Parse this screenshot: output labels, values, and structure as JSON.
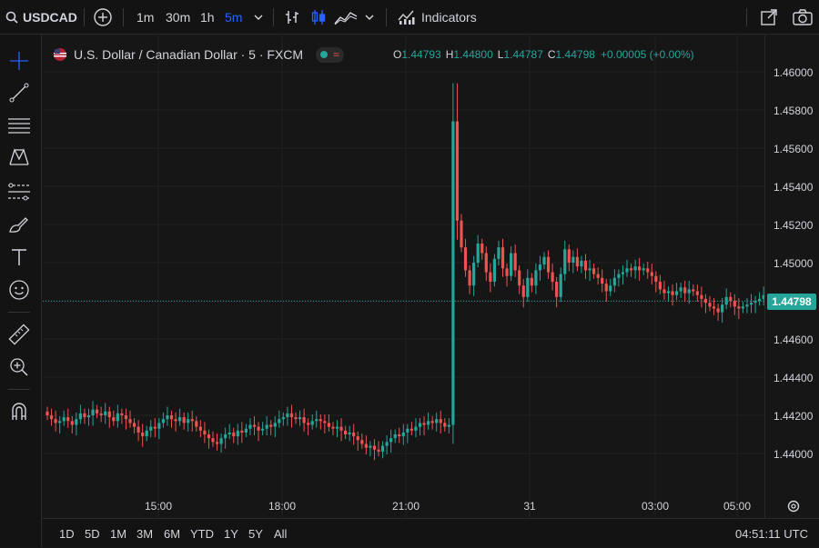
{
  "toolbar": {
    "symbol": "USDCAD",
    "intervals": [
      "1m",
      "30m",
      "1h",
      "5m"
    ],
    "active_interval": "5m",
    "indicators_label": "Indicators"
  },
  "legend": {
    "title": "U.S. Dollar / Canadian Dollar · 5 · FXCM",
    "open_label": "O",
    "open": "1.44793",
    "high_label": "H",
    "high": "1.44800",
    "low_label": "L",
    "low": "1.44787",
    "close_label": "C",
    "close": "1.44798",
    "change": "+0.00005 (+0.00%)"
  },
  "price_axis": {
    "ticks": [
      "1.46000",
      "1.45800",
      "1.45600",
      "1.45400",
      "1.45200",
      "1.45000",
      "1.44600",
      "1.44400",
      "1.44200",
      "1.44000"
    ],
    "current_price": "1.44798"
  },
  "time_axis": {
    "ticks": [
      "15:00",
      "18:00",
      "21:00",
      "31",
      "03:00",
      "05:00"
    ]
  },
  "bottom": {
    "ranges": [
      "1D",
      "5D",
      "1M",
      "3M",
      "6M",
      "YTD",
      "1Y",
      "5Y",
      "All"
    ],
    "clock": "04:51:11 UTC"
  },
  "colors": {
    "up": "#26a69a",
    "down": "#ef5350",
    "accent": "#2962ff",
    "background": "#161616"
  },
  "chart_data": {
    "type": "candlestick",
    "title": "U.S. Dollar / Canadian Dollar · 5 · FXCM",
    "ylim": [
      1.4392,
      1.4612
    ],
    "series": [
      {
        "values": [
          1.442,
          1.4418,
          1.4416,
          1.4417,
          1.4419,
          1.4417,
          1.4415,
          1.4418,
          1.4421,
          1.4419,
          1.442,
          1.4423,
          1.4421,
          1.442,
          1.4422,
          1.4419,
          1.4417,
          1.4421,
          1.442,
          1.4418,
          1.4416,
          1.4414,
          1.4411,
          1.4409,
          1.4412,
          1.4414,
          1.4413,
          1.4416,
          1.4418,
          1.442,
          1.4418,
          1.4417,
          1.4419,
          1.4416,
          1.4418,
          1.4417,
          1.4414,
          1.4412,
          1.441,
          1.4408,
          1.4406,
          1.4405,
          1.4408,
          1.441,
          1.4411,
          1.4409,
          1.4412,
          1.4411,
          1.4413,
          1.4415,
          1.4414,
          1.4412,
          1.4413,
          1.4415,
          1.4414,
          1.4416,
          1.4418,
          1.4419,
          1.4421,
          1.4419,
          1.4418,
          1.4419,
          1.4416,
          1.4415,
          1.4417,
          1.4418,
          1.4417,
          1.4416,
          1.4414,
          1.4413,
          1.4414,
          1.4412,
          1.441,
          1.4411,
          1.4409,
          1.4407,
          1.4405,
          1.4403,
          1.4404,
          1.4402,
          1.4401,
          1.4404,
          1.4406,
          1.4408,
          1.441,
          1.4409,
          1.4411,
          1.4413,
          1.4412,
          1.4414,
          1.4416,
          1.4415,
          1.4417,
          1.4416,
          1.4418,
          1.4416,
          1.4414,
          1.4415,
          1.4574,
          1.4522,
          1.4508,
          1.4496,
          1.4488,
          1.45,
          1.451,
          1.4505,
          1.4495,
          1.449,
          1.4502,
          1.4508,
          1.4497,
          1.4493,
          1.4505,
          1.4496,
          1.4488,
          1.4482,
          1.4492,
          1.4488,
          1.4496,
          1.4499,
          1.4503,
          1.4495,
          1.449,
          1.4482,
          1.4494,
          1.4507,
          1.45,
          1.4503,
          1.4498,
          1.4501,
          1.4496,
          1.4497,
          1.4494,
          1.4492,
          1.4489,
          1.4485,
          1.4488,
          1.4492,
          1.4494,
          1.4495,
          1.4497,
          1.4496,
          1.4498,
          1.4496,
          1.4497,
          1.4495,
          1.4493,
          1.449,
          1.4486,
          1.4484,
          1.4485,
          1.4483,
          1.4485,
          1.4487,
          1.4484,
          1.4486,
          1.4485,
          1.4483,
          1.4481,
          1.4479,
          1.4477,
          1.4476,
          1.4474,
          1.4478,
          1.4482,
          1.448,
          1.4477,
          1.4476,
          1.4477,
          1.4478,
          1.4479,
          1.448,
          1.4481,
          1.4483,
          1.4484,
          1.4485,
          1.4486,
          1.4485,
          1.4483,
          1.4481,
          1.448
        ]
      }
    ]
  }
}
